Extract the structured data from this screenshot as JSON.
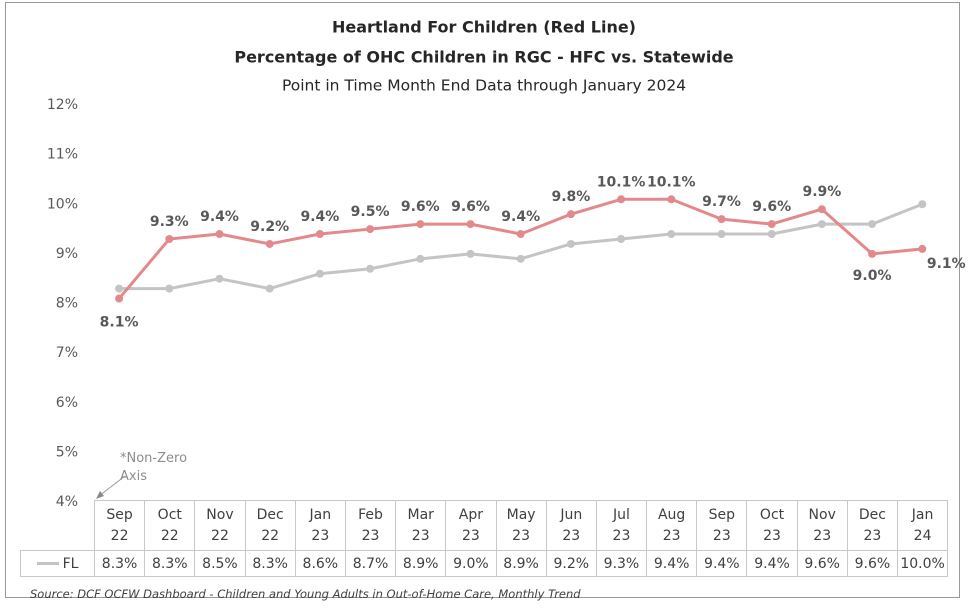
{
  "chart_data": {
    "type": "line",
    "title": "Heartland For Children (Red Line)",
    "subtitle": "Percentage of OHC Children in RGC - HFC vs. Statewide",
    "note": "Point in Time Month End Data through January 2024",
    "annotation": "*Non-Zero Axis",
    "source": "Source: DCF OCFW Dashboard - Children and Young Adults in Out-of-Home Care, Monthly Trend",
    "categories": [
      "Sep 22",
      "Oct 22",
      "Nov 22",
      "Dec 22",
      "Jan 23",
      "Feb 23",
      "Mar 23",
      "Apr 23",
      "May 23",
      "Jun 23",
      "Jul 23",
      "Aug 23",
      "Sep 23",
      "Oct 23",
      "Nov 23",
      "Dec 23",
      "Jan 24"
    ],
    "series": [
      {
        "color": "#e3898b",
        "values": [
          8.1,
          9.3,
          9.4,
          9.2,
          9.4,
          9.5,
          9.6,
          9.6,
          9.4,
          9.8,
          10.1,
          10.1,
          9.7,
          9.6,
          9.9,
          9.0,
          9.1
        ],
        "value_labels": [
          "8.1%",
          "9.3%",
          "9.4%",
          "9.2%",
          "9.4%",
          "9.5%",
          "9.6%",
          "9.6%",
          "9.4%",
          "9.8%",
          "10.1%",
          "10.1%",
          "9.7%",
          "9.6%",
          "9.9%",
          "9.0%",
          "9.1%"
        ]
      },
      {
        "name": "FL",
        "color": "#c4c4c4",
        "values": [
          8.3,
          8.3,
          8.5,
          8.3,
          8.6,
          8.7,
          8.9,
          9.0,
          8.9,
          9.2,
          9.3,
          9.4,
          9.4,
          9.4,
          9.6,
          9.6,
          10.0
        ],
        "value_labels": [
          "8.3%",
          "8.3%",
          "8.5%",
          "8.3%",
          "8.6%",
          "8.7%",
          "8.9%",
          "9.0%",
          "8.9%",
          "9.2%",
          "9.3%",
          "9.4%",
          "9.4%",
          "9.4%",
          "9.6%",
          "9.6%",
          "10.0%"
        ]
      }
    ],
    "ylim": [
      4,
      12
    ],
    "yticks": [
      {
        "value": 4,
        "label": "4%"
      },
      {
        "value": 5,
        "label": "5%"
      },
      {
        "value": 6,
        "label": "6%"
      },
      {
        "value": 7,
        "label": "7%"
      },
      {
        "value": 8,
        "label": "8%"
      },
      {
        "value": 9,
        "label": "9%"
      },
      {
        "value": 10,
        "label": "10%"
      },
      {
        "value": 11,
        "label": "11%"
      },
      {
        "value": 12,
        "label": "12%"
      }
    ],
    "grid": false
  }
}
